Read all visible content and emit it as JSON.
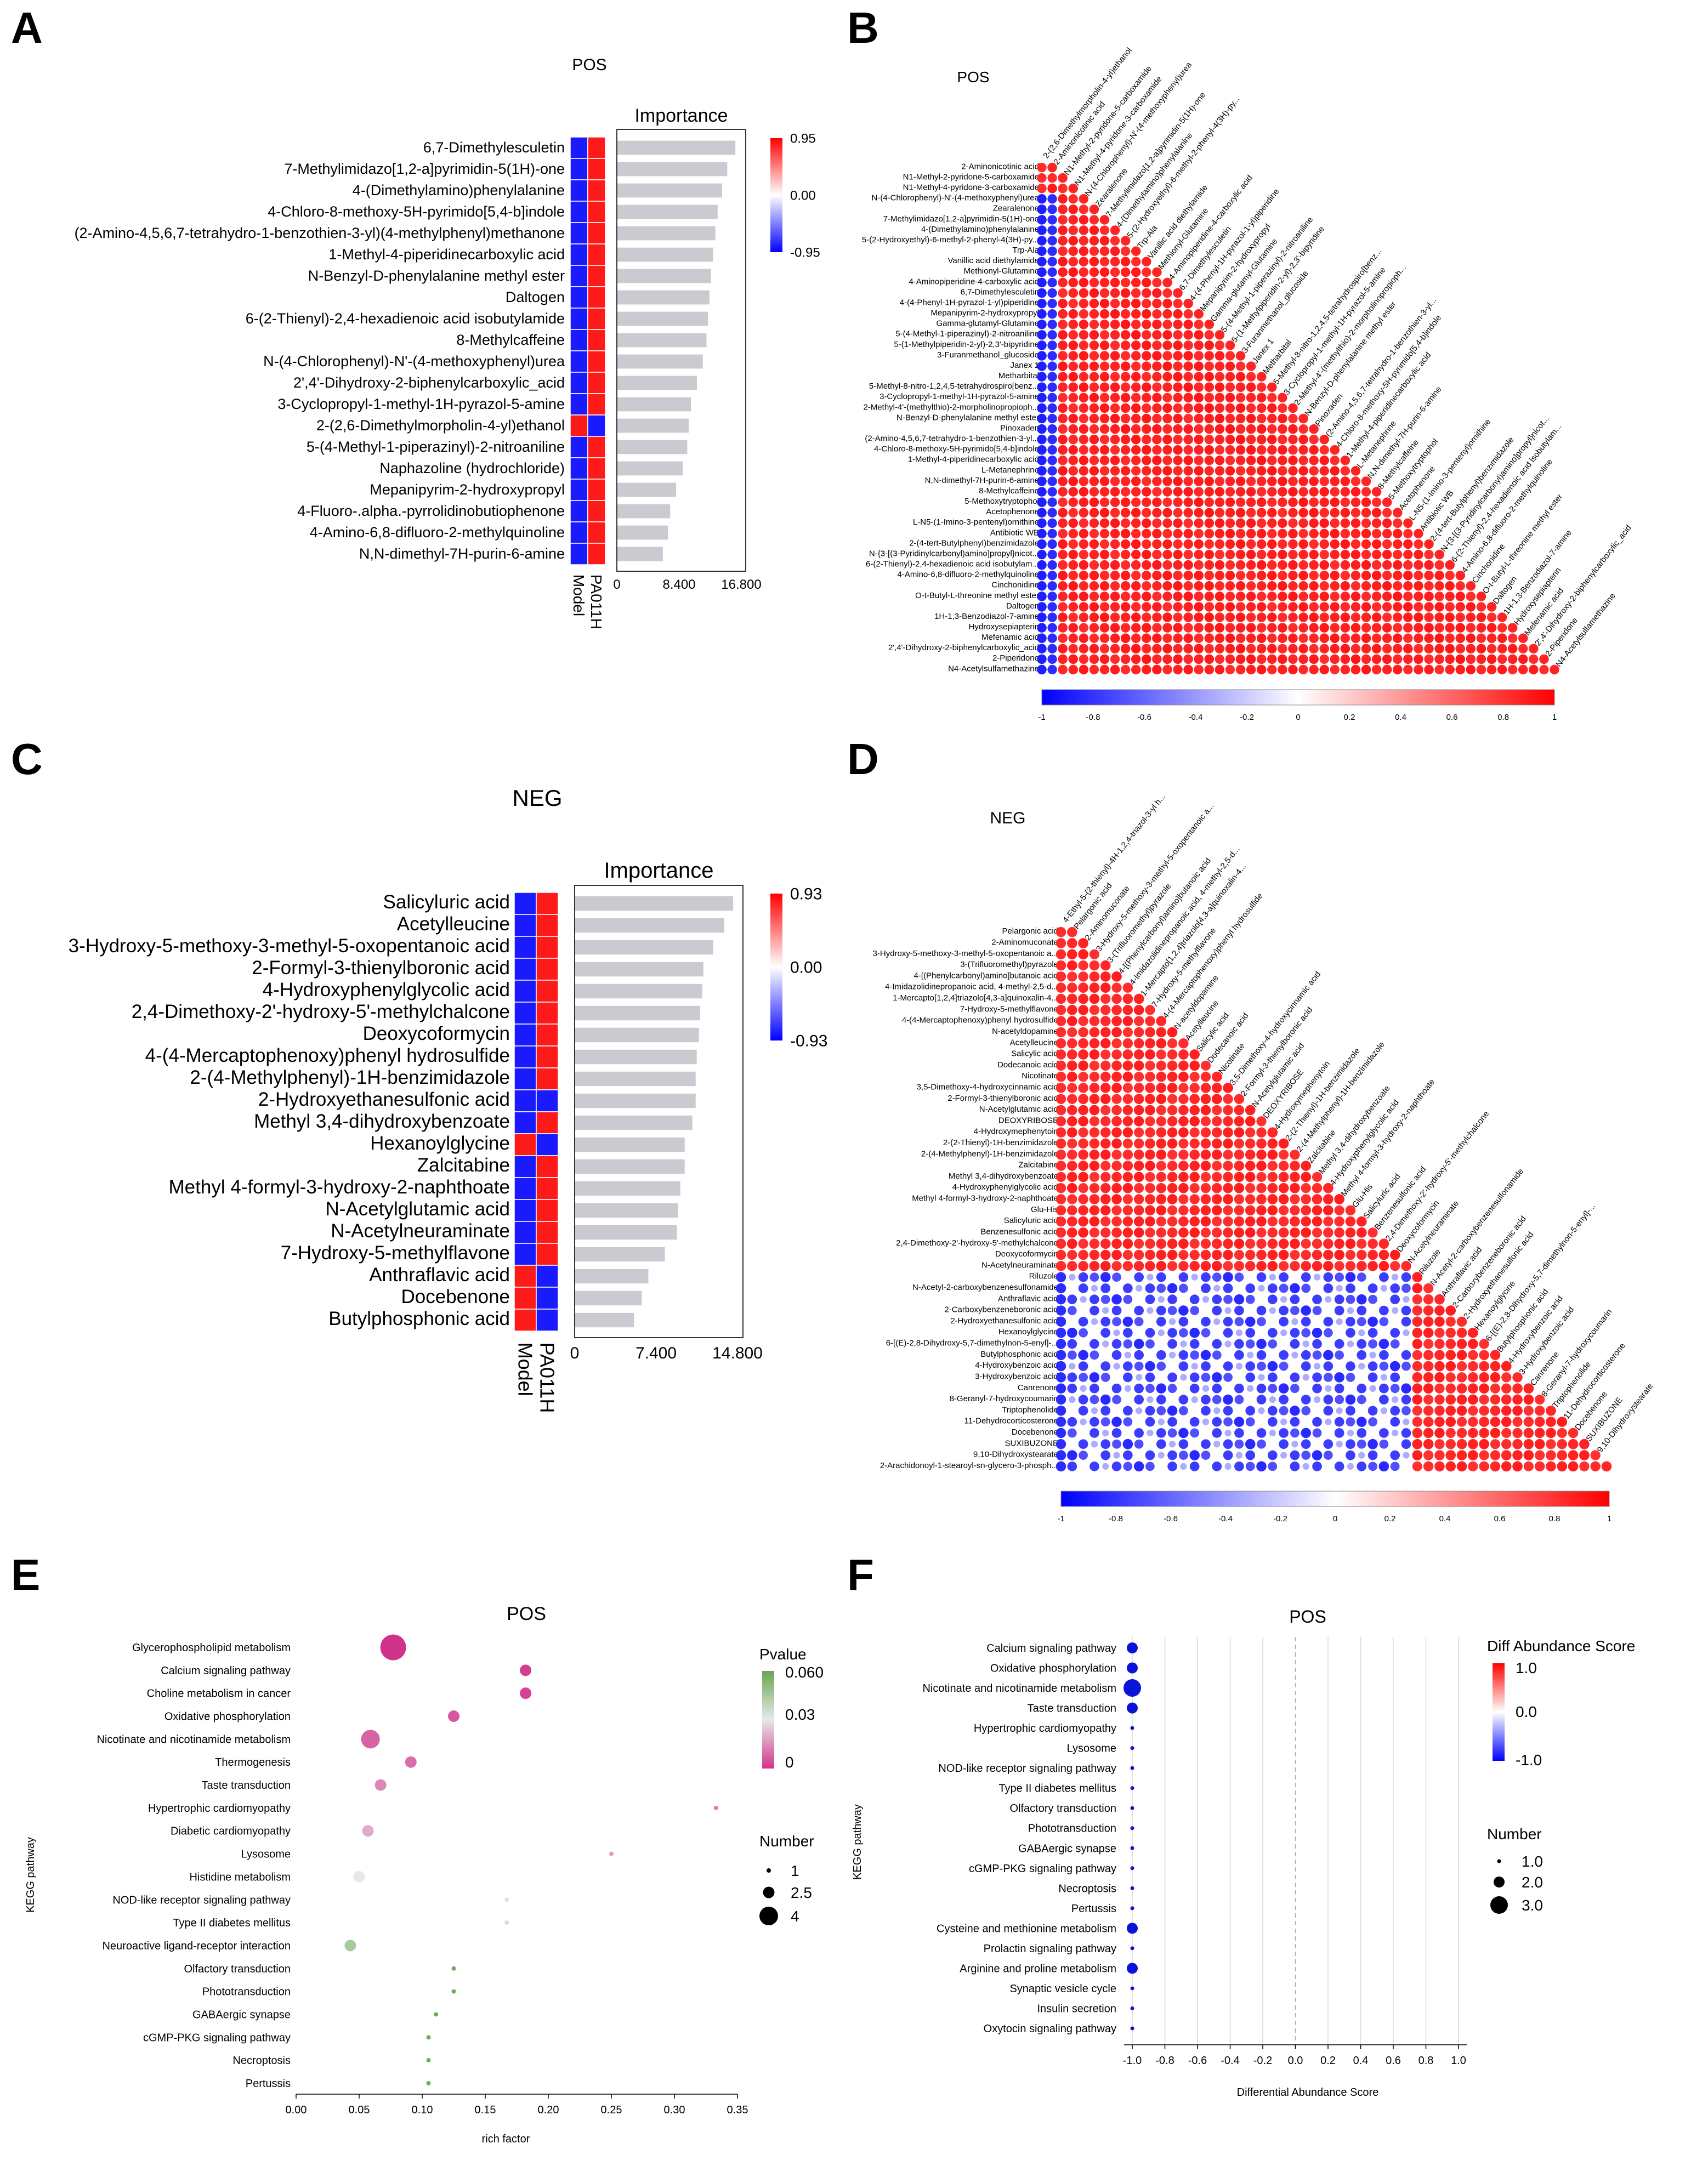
{
  "figure": {
    "panels": [
      "A",
      "B",
      "C",
      "D",
      "E",
      "F"
    ]
  },
  "colors": {
    "red": "#ff1a1a",
    "blue": "#1a1aff",
    "bar_gray": "#c9cbd1",
    "grid": "#d9d9d9"
  },
  "chart_data": [
    {
      "panel": "A",
      "type": "bar",
      "title": "POS",
      "heatmap_columns": [
        "Model",
        "PA011H"
      ],
      "heatmap_legend": {
        "max": "0.95",
        "mid": "0.00",
        "min": "-0.95"
      },
      "bar_header": "Importance",
      "xticks": [
        "0",
        "8.400",
        "16.800"
      ],
      "xlim": [
        0,
        16.8
      ],
      "categories": [
        "6,7-Dimethylesculetin",
        "7-Methylimidazo[1,2-a]pyrimidin-5(1H)-one",
        "4-(Dimethylamino)phenylalanine",
        "4-Chloro-8-methoxy-5H-pyrimido[5,4-b]indole",
        "(2-Amino-4,5,6,7-tetrahydro-1-benzothien-3-yl)(4-methylphenyl)methanone",
        "1-Methyl-4-piperidinecarboxylic acid",
        "N-Benzyl-D-phenylalanine methyl ester",
        "Daltogen",
        "6-(2-Thienyl)-2,4-hexadienoic acid isobutylamide",
        "8-Methylcaffeine",
        "N-(4-Chlorophenyl)-N'-(4-methoxyphenyl)urea",
        "2',4'-Dihydroxy-2-biphenylcarboxylic_acid",
        "3-Cyclopropyl-1-methyl-1H-pyrazol-5-amine",
        "2-(2,6-Dimethylmorpholin-4-yl)ethanol",
        "5-(4-Methyl-1-piperazinyl)-2-nitroaniline",
        "Naphazoline (hydrochloride)",
        "Mepanipyrim-2-hydroxypropyl",
        "4-Fluoro-.alpha.-pyrrolidinobutiophenone",
        "4-Amino-6,8-difluoro-2-methylquinoline",
        "N,N-dimethyl-7H-purin-6-amine"
      ],
      "values": [
        16.0,
        14.9,
        14.2,
        13.6,
        13.3,
        13.0,
        12.7,
        12.5,
        12.3,
        12.1,
        11.6,
        10.8,
        10.0,
        9.7,
        9.5,
        8.9,
        8.0,
        7.2,
        6.9,
        6.2
      ],
      "model_sign": [
        -1,
        -1,
        -1,
        -1,
        -1,
        -1,
        -1,
        -1,
        -1,
        -1,
        -1,
        -1,
        -1,
        1,
        -1,
        -1,
        -1,
        -1,
        -1,
        -1
      ]
    },
    {
      "panel": "B",
      "type": "heatmap",
      "title": "POS",
      "colorbar_ticks": [
        "-1",
        "-0.8",
        "-0.6",
        "-0.4",
        "-0.2",
        "0",
        "0.2",
        "0.4",
        "0.6",
        "0.8",
        "1"
      ],
      "labels": [
        "2-Aminonicotinic acid",
        "N1-Methyl-2-pyridone-5-carboxamide",
        "N1-Methyl-4-pyridone-3-carboxamide",
        "N-(4-Chlorophenyl)-N'-(4-methoxyphenyl)urea",
        "Zearalenone",
        "7-Methylimidazo[1,2-a]pyrimidin-5(1H)-one",
        "4-(Dimethylamino)phenylalanine",
        "5-(2-Hydroxyethyl)-6-methyl-2-phenyl-4(3H)-py...",
        "Trp-Ala",
        "Vanillic acid diethylamide",
        "Methionyl-Glutamine",
        "4-Aminopiperidine-4-carboxylic acid",
        "6,7-Dimethylesculetin",
        "4-(4-Phenyl-1H-pyrazol-1-yl)piperidine",
        "Mepanipyrim-2-hydroxypropyl",
        "Gamma-glutamyl-Glutamine",
        "5-(4-Methyl-1-piperazinyl)-2-nitroaniline",
        "5-(1-Methylpiperidin-2-yl)-2,3'-bipyridine",
        "3-Furanmethanol_glucoside",
        "Janex 1",
        "Metharbital",
        "5-Methyl-8-nitro-1,2,4,5-tetrahydrospiro[benz...",
        "3-Cyclopropyl-1-methyl-1H-pyrazol-5-amine",
        "2-Methyl-4'-(methylthio)-2-morpholinopropioph...",
        "N-Benzyl-D-phenylalanine methyl ester",
        "Pinoxaden",
        "(2-Amino-4,5,6,7-tetrahydro-1-benzothien-3-yl...",
        "4-Chloro-8-methoxy-5H-pyrimido[5,4-b]indole",
        "1-Methyl-4-piperidinecarboxylic acid",
        "L-Metanephrine",
        "N,N-dimethyl-7H-purin-6-amine",
        "8-Methylcaffeine",
        "5-Methoxytryptophol",
        "Acetophenone",
        "L-N5-(1-Imino-3-pentenyl)ornithine",
        "Antibiotic WB",
        "2-(4-tert-Butylphenyl)benzimidazole",
        "N-{3-[(3-Pyridinylcarbonyl)amino]propyl}nicot...",
        "6-(2-Thienyl)-2,4-hexadienoic acid isobutylam...",
        "4-Amino-6,8-difluoro-2-methylquinoline",
        "Cinchonidine",
        "O-t-Butyl-L-threonine methyl ester",
        "Daltogen",
        "1H-1,3-Benzodiazol-7-amine",
        "Hydroxysepiapterin",
        "Mefenamic acid",
        "2',4'-Dihydroxy-2-biphenylcarboxylic_acid",
        "2-Piperidone",
        "N4-Acetylsulfamethazine"
      ],
      "col_labels": [
        "2-(2,6-Dimethylmorpholin-4-yl)ethanol",
        "2-Aminonicotinic acid",
        "N1-Methyl-2-pyridone-5-carboxamide",
        "N1-Methyl-4-pyridone-3-carboxamide",
        "N-(4-Chlorophenyl)-N'-(4-methoxyphenyl)urea",
        "Zearalenone",
        "7-Methylimidazo[1,2-a]pyrimidin-5(1H)-one",
        "4-(Dimethylamino)phenylalanine",
        "5-(2-Hydroxyethyl)-6-methyl-2-phenyl-4(3H)-py...",
        "Trp-Ala",
        "Vanillic acid diethylamide",
        "Methionyl-Glutamine",
        "4-Aminopiperidine-4-carboxylic acid",
        "6,7-Dimethylesculetin",
        "4-(4-Phenyl-1H-pyrazol-1-yl)piperidine",
        "Mepanipyrim-2-hydroxypropyl",
        "Gamma-glutamyl-Glutamine",
        "5-(4-Methyl-1-piperazinyl)-2-nitroaniline",
        "5-(1-Methylpiperidin-2-yl)-2,3'-bipyridine",
        "3-Furanmethanol_glucoside",
        "Janex 1",
        "Metharbital",
        "5-Methyl-8-nitro-1,2,4,5-tetrahydrospiro[benz...",
        "3-Cyclopropyl-1-methyl-1H-pyrazol-5-amine",
        "2-Methyl-4'-(methylthio)-2-morpholinopropioph...",
        "N-Benzyl-D-phenylalanine methyl ester",
        "Pinoxaden",
        "(2-Amino-4,5,6,7-tetrahydro-1-benzothien-3-yl...",
        "4-Chloro-8-methoxy-5H-pyrimido[5,4-b]indole",
        "1-Methyl-4-piperidinecarboxylic acid",
        "L-Metanephrine",
        "N,N-dimethyl-7H-purin-6-amine",
        "8-Methylcaffeine",
        "5-Methoxytryptophol",
        "Acetophenone",
        "L-N5-(1-Imino-3-pentenyl)ornithine",
        "Antibiotic WB",
        "2-(4-tert-Butylphenyl)benzimidazole",
        "N-{3-[(3-Pyridinylcarbonyl)amino]propyl}nicot...",
        "6-(2-Thienyl)-2,4-hexadienoic acid isobutylam...",
        "4-Amino-6,8-difluoro-2-methylquinoline",
        "Cinchonidine",
        "O-t-Butyl-L-threonine methyl ester",
        "Daltogen",
        "1H-1,3-Benzodiazol-7-amine",
        "Hydroxysepiapterin",
        "Mefenamic acid",
        "2',4'-Dihydroxy-2-biphenylcarboxylic_acid",
        "2-Piperidone",
        "N4-Acetylsulfamethazine"
      ],
      "negative_block_cols": 1
    },
    {
      "panel": "C",
      "type": "bar",
      "title": "NEG",
      "heatmap_columns": [
        "Model",
        "PA011H"
      ],
      "heatmap_legend": {
        "max": "0.93",
        "mid": "0.00",
        "min": "-0.93"
      },
      "bar_header": "Importance",
      "xticks": [
        "0",
        "7.400",
        "14.800"
      ],
      "xlim": [
        0,
        14.8
      ],
      "categories": [
        "Salicyluric acid",
        "Acetylleucine",
        "3-Hydroxy-5-methoxy-3-methyl-5-oxopentanoic acid",
        "2-Formyl-3-thienylboronic acid",
        "4-Hydroxyphenylglycolic acid",
        "2,4-Dimethoxy-2'-hydroxy-5'-methylchalcone",
        "Deoxycoformycin",
        "4-(4-Mercaptophenoxy)phenyl hydrosulfide",
        "2-(4-Methylphenyl)-1H-benzimidazole",
        "2-Hydroxyethanesulfonic acid",
        "Methyl 3,4-dihydroxybenzoate",
        "Hexanoylglycine",
        "Zalcitabine",
        "Methyl 4-formyl-3-hydroxy-2-naphthoate",
        "N-Acetylglutamic acid",
        "N-Acetylneuraminate",
        "7-Hydroxy-5-methylflavone",
        "Anthraflavic acid",
        "Docebenone",
        "Butylphosphonic acid"
      ],
      "values": [
        14.4,
        13.6,
        12.6,
        11.7,
        11.6,
        11.4,
        11.3,
        11.1,
        11.0,
        11.0,
        10.7,
        10.0,
        10.0,
        9.6,
        9.4,
        9.3,
        8.2,
        6.7,
        6.1,
        5.4
      ],
      "model_sign": [
        -1,
        -1,
        -1,
        -1,
        -1,
        -1,
        -1,
        -1,
        -1,
        -1,
        -1,
        1,
        -1,
        -1,
        -1,
        -1,
        -1,
        1,
        1,
        1
      ],
      "pa011h_sign": [
        1,
        1,
        1,
        1,
        1,
        1,
        1,
        1,
        1,
        -1,
        1,
        -1,
        1,
        1,
        1,
        1,
        1,
        -1,
        -1,
        -1
      ]
    },
    {
      "panel": "D",
      "type": "heatmap",
      "title": "NEG",
      "colorbar_ticks": [
        "-1",
        "-0.8",
        "-0.6",
        "-0.4",
        "-0.2",
        "0",
        "0.2",
        "0.4",
        "0.6",
        "0.8",
        "1"
      ],
      "labels": [
        "Pelargonic acid",
        "2-Aminomuconate",
        "3-Hydroxy-5-methoxy-3-methyl-5-oxopentanoic a...",
        "3-(Trifluoromethyl)pyrazole",
        "4-[(Phenylcarbonyl)amino]butanoic acid",
        "4-Imidazolidinepropanoic acid, 4-methyl-2,5-d...",
        "1-Mercapto[1,2,4]triazolo[4,3-a]quinoxalin-4...",
        "7-Hydroxy-5-methylflavone",
        "4-(4-Mercaptophenoxy)phenyl hydrosulfide",
        "N-acetyldopamine",
        "Acetylleucine",
        "Salicylic acid",
        "Dodecanoic acid",
        "Nicotinate",
        "3,5-Dimethoxy-4-hydroxycinnamic acid",
        "2-Formyl-3-thienylboronic acid",
        "N-Acetylglutamic acid",
        "DEOXYRIBOSE",
        "4-Hydroxymephenytoin",
        "2-(2-Thienyl)-1H-benzimidazole",
        "2-(4-Methylphenyl)-1H-benzimidazole",
        "Zalcitabine",
        "Methyl 3,4-dihydroxybenzoate",
        "4-Hydroxyphenylglycolic acid",
        "Methyl 4-formyl-3-hydroxy-2-naphthoate",
        "Glu-His",
        "Salicyluric acid",
        "Benzenesulfonic acid",
        "2,4-Dimethoxy-2'-hydroxy-5'-methylchalcone",
        "Deoxycoformycin",
        "N-Acetylneuraminate",
        "Riluzole",
        "N-Acetyl-2-carboxybenzenesulfonamide",
        "Anthraflavic acid",
        "2-Carboxybenzeneboronic acid",
        "2-Hydroxyethanesulfonic acid",
        "Hexanoylglycine",
        "6-[(E)-2,8-Dihydroxy-5,7-dimethylnon-5-enyl]-...",
        "Butylphosphonic acid",
        "4-Hydroxybenzoic acid",
        "3-Hydroxybenzoic acid",
        "Canrenone",
        "8-Geranyl-7-hydroxycoumarin",
        "Triptophenolide",
        "11-Dehydrocorticosterone",
        "Docebenone",
        "SUXIBUZONE",
        "9,10-Dihydroxystearate",
        "2-Arachidonoyl-1-stearoyl-sn-glycero-3-phosph..."
      ],
      "col_labels": [
        "4-Ethyl-5-(2-thienyl)-4H-1,2,4-triazol-3-yl h...",
        "Pelargonic acid",
        "2-Aminomuconate",
        "3-Hydroxy-5-methoxy-3-methyl-5-oxopentanoic a...",
        "3-(Trifluoromethyl)pyrazole",
        "4-[(Phenylcarbonyl)amino]butanoic acid",
        "4-Imidazolidinepropanoic acid, 4-methyl-2,5-d...",
        "1-Mercapto[1,2,4]triazolo[4,3-a]quinoxalin-4...",
        "7-Hydroxy-5-methylflavone",
        "4-(4-Mercaptophenoxy)phenyl hydrosulfide",
        "N-acetyldopamine",
        "Acetylleucine",
        "Salicylic acid",
        "Dodecanoic acid",
        "Nicotinate",
        "3,5-Dimethoxy-4-hydroxycinnamic acid",
        "2-Formyl-3-thienylboronic acid",
        "N-Acetylglutamic acid",
        "DEOXYRIBOSE",
        "4-Hydroxymephenytoin",
        "2-(2-Thienyl)-1H-benzimidazole",
        "2-(4-Methylphenyl)-1H-benzimidazole",
        "Zalcitabine",
        "Methyl 3,4-dihydroxybenzoate",
        "4-Hydroxyphenylglycolic acid",
        "Methyl 4-formyl-3-hydroxy-2-naphthoate",
        "Glu-His",
        "Salicyluric acid",
        "Benzenesulfonic acid",
        "2,4-Dimethoxy-2'-hydroxy-5'-methylchalcone",
        "Deoxycoformycin",
        "N-Acetylneuraminate",
        "Riluzole",
        "N-Acetyl-2-carboxybenzenesulfonamide",
        "Anthraflavic acid",
        "2-Carboxybenzeneboronic acid",
        "2-Hydroxyethanesulfonic acid",
        "Hexanoylglycine",
        "6-[(E)-2,8-Dihydroxy-5,7-dimethylnon-5-enyl]-...",
        "Butylphosphonic acid",
        "4-Hydroxybenzoic acid",
        "3-Hydroxybenzoic acid",
        "Canrenone",
        "8-Geranyl-7-hydroxycoumarin",
        "Triptophenolide",
        "11-Dehydrocorticosterone",
        "Docebenone",
        "SUXIBUZONE",
        "9,10-Dihydroxystearate"
      ],
      "block_split": 31
    },
    {
      "panel": "E",
      "type": "scatter",
      "title": "POS",
      "xlabel": "rich factor",
      "ylabel": "KEGG pathway",
      "xlim": [
        0,
        0.35
      ],
      "xticks": [
        "0.00",
        "0.05",
        "0.10",
        "0.15",
        "0.20",
        "0.25",
        "0.30",
        "0.35"
      ],
      "legend_color_title": "Pvalue",
      "legend_color_ticks": [
        "0.060",
        "0.03",
        "0"
      ],
      "legend_size_title": "Number",
      "legend_size_ticks": [
        "1",
        "2.5",
        "4"
      ],
      "categories": [
        "Glycerophospholipid metabolism",
        "Calcium signaling pathway",
        "Choline metabolism in cancer",
        "Oxidative phosphorylation",
        "Nicotinate and nicotinamide metabolism",
        "Thermogenesis",
        "Taste transduction",
        "Hypertrophic cardiomyopathy",
        "Diabetic cardiomyopathy",
        "Lysosome",
        "Histidine metabolism",
        "NOD-like receptor signaling pathway",
        "Type II diabetes mellitus",
        "Neuroactive ligand-receptor interaction",
        "Olfactory transduction",
        "Phototransduction",
        "GABAergic synapse",
        "cGMP-PKG signaling pathway",
        "Necroptosis",
        "Pertussis"
      ],
      "x": [
        0.077,
        0.182,
        0.182,
        0.125,
        0.059,
        0.091,
        0.067,
        0.333,
        0.057,
        0.25,
        0.05,
        0.167,
        0.167,
        0.043,
        0.125,
        0.125,
        0.111,
        0.105,
        0.105,
        0.105
      ],
      "pvalue": [
        0.0,
        0.002,
        0.003,
        0.006,
        0.008,
        0.01,
        0.014,
        0.012,
        0.02,
        0.017,
        0.03,
        0.033,
        0.034,
        0.045,
        0.058,
        0.058,
        0.058,
        0.058,
        0.058,
        0.058
      ],
      "number": [
        4,
        2,
        2,
        2,
        3,
        2,
        2,
        1,
        2,
        1,
        2,
        1,
        1,
        2,
        1,
        1,
        1,
        1,
        1,
        1
      ]
    },
    {
      "panel": "F",
      "type": "scatter",
      "title": "POS",
      "xlabel": "Differential Abundance Score",
      "ylabel": "KEGG pathway",
      "xlim": [
        -1.0,
        1.0
      ],
      "xticks": [
        "-1.0",
        "-0.8",
        "-0.6",
        "-0.4",
        "-0.2",
        "0.0",
        "0.2",
        "0.4",
        "0.6",
        "0.8",
        "1.0"
      ],
      "legend_color_title": "Diff Abundance Score",
      "legend_color_ticks": [
        "1.0",
        "0.0",
        "-1.0"
      ],
      "legend_size_title": "Number",
      "legend_size_ticks": [
        "1.0",
        "2.0",
        "3.0"
      ],
      "categories": [
        "Calcium signaling pathway",
        "Oxidative phosphorylation",
        "Nicotinate and nicotinamide metabolism",
        "Taste transduction",
        "Hypertrophic cardiomyopathy",
        "Lysosome",
        "NOD-like receptor signaling pathway",
        "Type II diabetes mellitus",
        "Olfactory transduction",
        "Phototransduction",
        "GABAergic synapse",
        "cGMP-PKG signaling pathway",
        "Necroptosis",
        "Pertussis",
        "Cysteine and methionine metabolism",
        "Prolactin signaling pathway",
        "Arginine and proline metabolism",
        "Synaptic vesicle cycle",
        "Insulin secretion",
        "Oxytocin signaling pathway"
      ],
      "x": [
        -1,
        -1,
        -1,
        -1,
        -1,
        -1,
        -1,
        -1,
        -1,
        -1,
        -1,
        -1,
        -1,
        -1,
        -1,
        -1,
        -1,
        -1,
        -1,
        -1
      ],
      "number": [
        2,
        2,
        3,
        2,
        1,
        1,
        1,
        1,
        1,
        1,
        1,
        1,
        1,
        1,
        2,
        1,
        2,
        1,
        1,
        1
      ]
    }
  ]
}
